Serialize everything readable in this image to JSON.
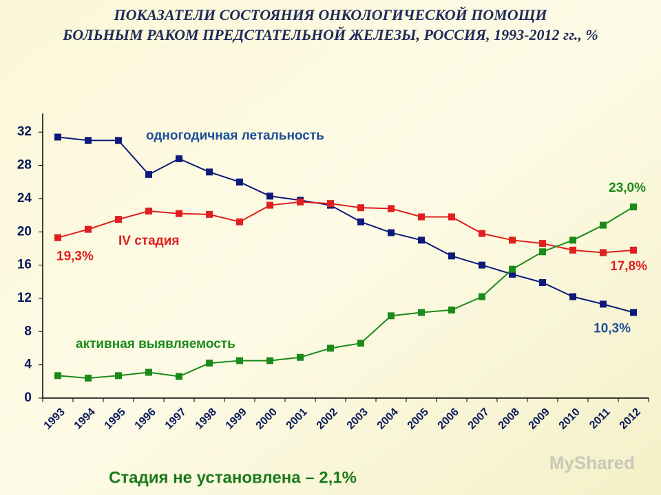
{
  "chart_data": {
    "type": "line",
    "title": [
      "ПОКАЗАТЕЛИ СОСТОЯНИЯ ОНКОЛОГИЧЕСКОЙ ПОМОЩИ",
      "БОЛЬНЫМ РАКОМ ПРЕДСТАТЕЛЬНОЙ ЖЕЛЕЗЫ, РОССИЯ, 1993-2012 гг., %"
    ],
    "categories": [
      "1993",
      "1994",
      "1995",
      "1996",
      "1997",
      "1998",
      "1999",
      "2000",
      "2001",
      "2002",
      "2003",
      "2004",
      "2005",
      "2006",
      "2007",
      "2008",
      "2009",
      "2010",
      "2011",
      "2012"
    ],
    "series": [
      {
        "name": "одногодичная летальность",
        "color": "#0d1a7a",
        "values": [
          31.4,
          31.0,
          31.0,
          26.9,
          28.8,
          27.2,
          26.0,
          24.3,
          23.8,
          23.2,
          21.2,
          19.9,
          19.0,
          17.1,
          16.0,
          14.9,
          13.9,
          12.2,
          11.3,
          10.3
        ],
        "value_labels": [
          null,
          null,
          null,
          null,
          null,
          null,
          null,
          null,
          null,
          null,
          null,
          null,
          null,
          null,
          null,
          null,
          null,
          null,
          null,
          "10,3%"
        ]
      },
      {
        "name": "IV стадия",
        "color": "#e01f1f",
        "values": [
          19.3,
          20.3,
          21.5,
          22.5,
          22.2,
          22.1,
          21.2,
          23.2,
          23.6,
          23.4,
          22.9,
          22.8,
          21.8,
          21.8,
          19.8,
          19.0,
          18.6,
          17.8,
          17.5,
          17.8
        ],
        "value_labels": [
          "19,3%",
          null,
          null,
          null,
          null,
          null,
          null,
          null,
          null,
          null,
          null,
          null,
          null,
          null,
          null,
          null,
          null,
          null,
          null,
          "17,8%"
        ]
      },
      {
        "name": "активная выявляемость",
        "color": "#1a8a1a",
        "values": [
          2.7,
          2.4,
          2.7,
          3.1,
          2.6,
          4.2,
          4.5,
          4.5,
          4.9,
          6.0,
          6.6,
          9.9,
          10.3,
          10.6,
          12.2,
          15.5,
          17.6,
          19.0,
          20.8,
          23.0
        ],
        "value_labels": [
          null,
          null,
          null,
          null,
          null,
          null,
          null,
          null,
          null,
          null,
          null,
          null,
          null,
          null,
          null,
          null,
          null,
          null,
          null,
          "23,0%"
        ]
      }
    ],
    "ylim": [
      0,
      34
    ],
    "yticks": [
      0,
      4,
      8,
      12,
      16,
      20,
      24,
      28,
      32
    ],
    "note": "Стадия не установлена – 2,1%",
    "watermark": "MyShared"
  }
}
